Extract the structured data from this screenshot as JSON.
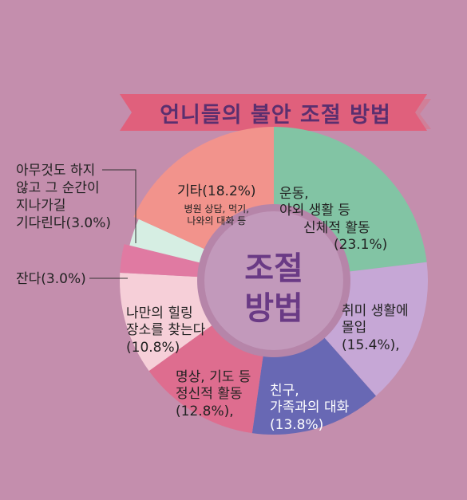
{
  "title": "언니들의 불안 조절 방법",
  "chart_data": {
    "type": "pie",
    "center_label": [
      "조절",
      "방법"
    ],
    "slices": [
      {
        "lines": [
          "운동,",
          "야외 생활 등",
          "신체적 활동",
          "(23.1%)"
        ],
        "value": 23.1,
        "color": "#82c4a4"
      },
      {
        "lines": [
          "취미 생활에",
          "몰입",
          "(15.4%),"
        ],
        "value": 15.4,
        "color": "#c6a7d6"
      },
      {
        "lines": [
          "친구,",
          "가족과의 대화",
          "(13.8%)"
        ],
        "value": 13.8,
        "color": "#6868b4"
      },
      {
        "lines": [
          "명상, 기도 등",
          "정신적 활동",
          "(12.8%),"
        ],
        "value": 12.8,
        "color": "#de6d8f"
      },
      {
        "lines": [
          "나만의 힐링",
          "장소를 찾는다",
          "(10.8%)"
        ],
        "value": 10.8,
        "color": "#f6cfd8"
      },
      {
        "lines": [
          "잔다(3.0%)"
        ],
        "value": 3.0,
        "color": "#e07aa2"
      },
      {
        "lines": [
          "아무것도 하지",
          "않고 그 순간이",
          "지나가길",
          "기다린다(3.0%)"
        ],
        "value": 3.0,
        "color": "#d6eee3"
      },
      {
        "lines": [
          "기타(18.2%)"
        ],
        "sublines": [
          "병원 상담, 먹기,",
          "나와의 대화 등"
        ],
        "value": 18.2,
        "color": "#f2938c"
      }
    ]
  },
  "colors": {
    "background": "#c48ead",
    "banner": "#e0607c",
    "banner_shadow": "#d6798f",
    "title": "#5b2f6f",
    "inner_ring": "#b685a9",
    "center": "#c299bb",
    "center_text": "#6a3a85"
  }
}
